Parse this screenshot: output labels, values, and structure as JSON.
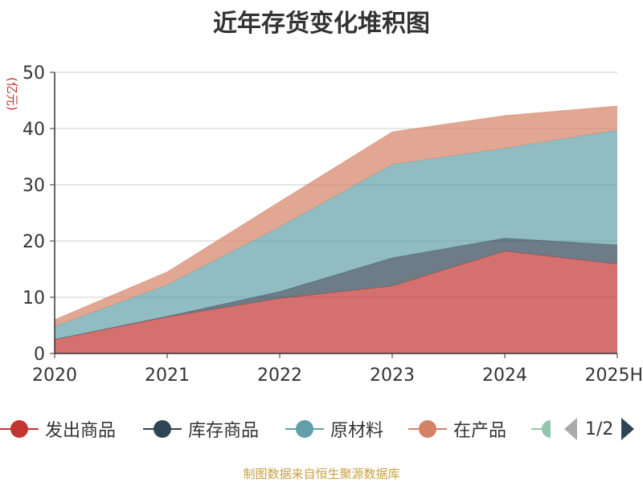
{
  "chart_data": {
    "type": "area",
    "stacked": true,
    "title": "近年存货变化堆积图",
    "ylabel": "(亿元)",
    "categories": [
      "2020",
      "2021",
      "2022",
      "2023",
      "2024",
      "2025H"
    ],
    "ylim": [
      0,
      50
    ],
    "yticks": [
      0,
      10,
      20,
      30,
      40,
      50
    ],
    "grid": true,
    "legend_position": "bottom",
    "series": [
      {
        "name": "发出商品",
        "color": "#c23531",
        "values": [
          2.5,
          6.5,
          9.8,
          12.0,
          18.2,
          15.9
        ]
      },
      {
        "name": "库存商品",
        "color": "#2f4554",
        "values": [
          0.0,
          0.1,
          1.2,
          5.0,
          2.3,
          3.4
        ]
      },
      {
        "name": "原材料",
        "color": "#61a0a8",
        "values": [
          2.3,
          5.6,
          11.5,
          16.6,
          16.0,
          20.4
        ]
      },
      {
        "name": "在产品",
        "color": "#d48265",
        "values": [
          1.2,
          2.3,
          4.5,
          5.8,
          5.8,
          4.3
        ]
      }
    ],
    "legend_items": [
      "发出商品",
      "库存商品",
      "原材料",
      "在产品"
    ],
    "legend_partial_color": "#91c7ae"
  },
  "legend_page": "1/2",
  "source": "制图数据来自恒生聚源数据库"
}
